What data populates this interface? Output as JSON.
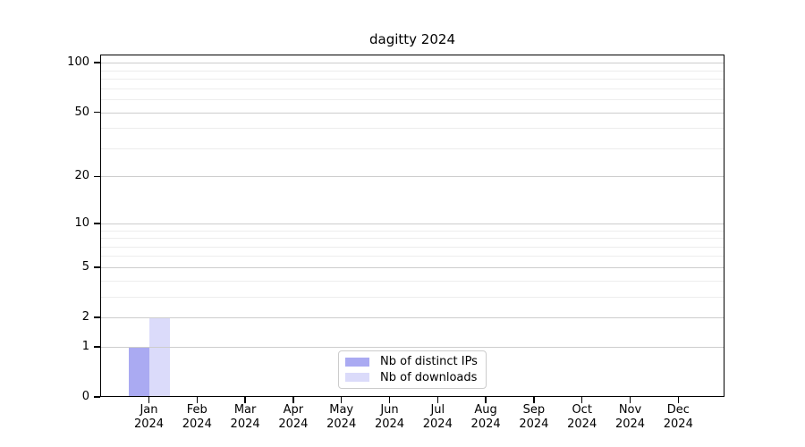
{
  "title": "dagitty 2024",
  "chart_data": {
    "type": "bar",
    "title": "dagitty 2024",
    "categories": [
      "Jan",
      "Feb",
      "Mar",
      "Apr",
      "May",
      "Jun",
      "Jul",
      "Aug",
      "Sep",
      "Oct",
      "Nov",
      "Dec"
    ],
    "category_year": "2024",
    "series": [
      {
        "name": "Nb of distinct IPs",
        "color": "#aaaaf2",
        "values": [
          1,
          0,
          0,
          0,
          0,
          0,
          0,
          0,
          0,
          0,
          0,
          0
        ]
      },
      {
        "name": "Nb of downloads",
        "color": "#dbdbfa",
        "values": [
          2,
          0,
          0,
          0,
          0,
          0,
          0,
          0,
          0,
          0,
          0,
          0
        ]
      }
    ],
    "y_axis": {
      "scale": "log1p",
      "major_ticks": [
        0,
        1,
        2,
        5,
        10,
        20,
        50,
        100
      ],
      "minor_gridlines": [
        3,
        4,
        6,
        7,
        8,
        9,
        30,
        40,
        60,
        70,
        80,
        90
      ],
      "ylim": [
        0,
        112
      ]
    },
    "x_axis": {
      "label_line2": "2024"
    },
    "grid": true,
    "legend": {
      "position": "bottom-center",
      "entries": [
        "Nb of distinct IPs",
        "Nb of downloads"
      ]
    },
    "colors": {
      "major_grid": "#cdcdcd",
      "minor_grid": "#ededed",
      "axis": "#000000",
      "legend_border": "#cccccc",
      "background": "#ffffff"
    }
  }
}
